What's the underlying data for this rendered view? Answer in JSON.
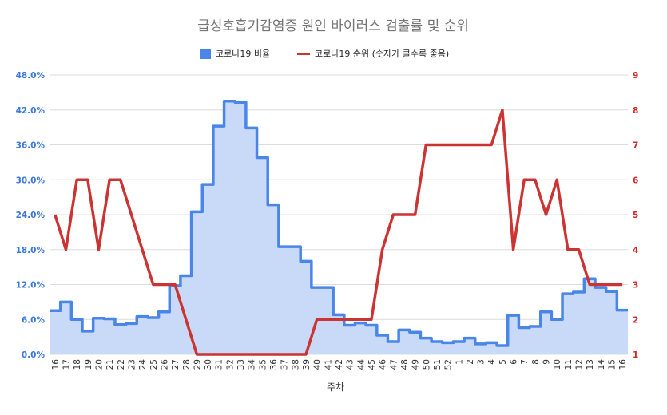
{
  "chart_data": {
    "type": "line",
    "title": "급성호흡기감염증 원인 바이러스 검출률 및 순위",
    "xlabel": "주차",
    "ylabel": "",
    "y2label": "",
    "legend_position": "top",
    "grid": true,
    "categories": [
      "16",
      "17",
      "18",
      "19",
      "20",
      "21",
      "22",
      "23",
      "24",
      "25",
      "26",
      "27",
      "28",
      "29",
      "30",
      "31",
      "32",
      "33",
      "34",
      "35",
      "36",
      "37",
      "38",
      "39",
      "40",
      "41",
      "42",
      "43",
      "44",
      "45",
      "46",
      "47",
      "48",
      "49",
      "50",
      "51",
      "52",
      "1",
      "2",
      "3",
      "4",
      "5",
      "6",
      "7",
      "8",
      "9",
      "10",
      "11",
      "12",
      "13",
      "14",
      "15",
      "16"
    ],
    "y_ticks": [
      "0.0%",
      "6.0%",
      "12.0%",
      "18.0%",
      "24.0%",
      "30.0%",
      "36.0%",
      "42.0%",
      "48.0%"
    ],
    "y2_ticks": [
      "1",
      "2",
      "3",
      "4",
      "5",
      "6",
      "7",
      "8",
      "9"
    ],
    "ylim": [
      0,
      48
    ],
    "y2lim": [
      1,
      9
    ],
    "series": [
      {
        "name": "코로나19 비율",
        "axis": "left",
        "style": "stepped-area",
        "color": "#4a86e8",
        "fill": "#c9daf8",
        "values": [
          7.5,
          9.0,
          6.0,
          4.0,
          6.2,
          6.1,
          5.1,
          5.3,
          6.5,
          6.3,
          7.3,
          11.8,
          13.5,
          24.5,
          29.2,
          39.2,
          43.5,
          43.3,
          38.9,
          33.8,
          25.7,
          18.5,
          18.5,
          16.0,
          11.5,
          11.5,
          6.8,
          5.0,
          5.4,
          5.0,
          3.3,
          2.2,
          4.2,
          3.8,
          2.8,
          2.2,
          2.0,
          2.2,
          2.8,
          1.8,
          2.0,
          1.5,
          6.7,
          4.6,
          4.8,
          7.3,
          6.0,
          10.4,
          10.7,
          13.0,
          11.5,
          10.8,
          7.6
        ]
      },
      {
        "name": "코로나19 순위 (숫자가 클수록 좋음)",
        "axis": "right",
        "style": "line",
        "color": "#cc3333",
        "values": [
          5,
          4,
          6,
          6,
          4,
          6,
          6,
          5,
          4,
          3,
          3,
          3,
          2,
          1,
          1,
          1,
          1,
          1,
          1,
          1,
          1,
          1,
          1,
          1,
          2,
          2,
          2,
          2,
          2,
          2,
          4,
          5,
          5,
          5,
          7,
          7,
          7,
          7,
          7,
          7,
          7,
          8,
          4,
          6,
          6,
          5,
          6,
          4,
          4,
          3,
          3,
          3,
          3
        ]
      }
    ]
  }
}
